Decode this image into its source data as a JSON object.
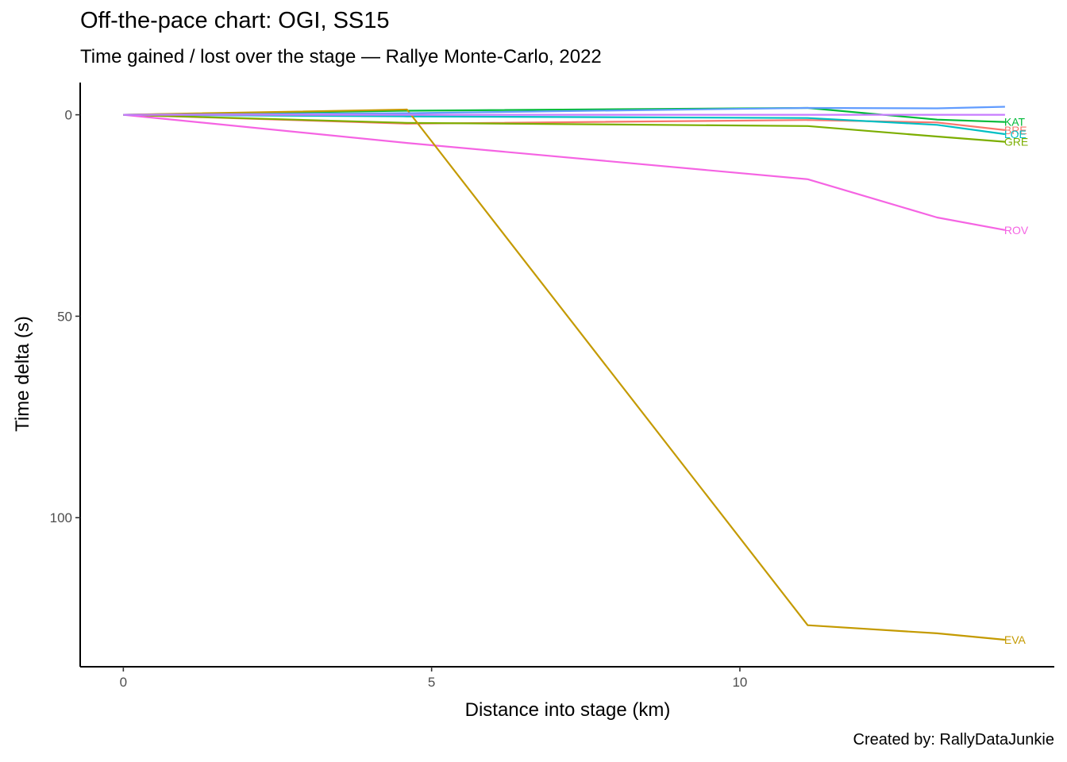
{
  "title": "Off-the-pace chart: OGI, SS15",
  "subtitle": "Time gained / lost over the stage — Rallye Monte-Carlo, 2022",
  "caption": "Created by: RallyDataJunkie",
  "chart_data": {
    "type": "line",
    "xlabel": "Distance into stage (km)",
    "ylabel": "Time delta (s)",
    "xlim": [
      -0.7,
      15.1
    ],
    "ylim": [
      -8,
      137
    ],
    "y_reversed": true,
    "x_ticks": [
      0,
      5,
      10
    ],
    "y_ticks": [
      0,
      50,
      100
    ],
    "grid": false,
    "legend": "none (direct end labels)",
    "series": [
      {
        "name": "KAT",
        "color": "#00BA38",
        "x": [
          0,
          4.6,
          11.1,
          13.2,
          14.3
        ],
        "y": [
          0,
          -1.0,
          -1.7,
          1.2,
          1.8
        ]
      },
      {
        "name": "BRE",
        "color": "#F8766D",
        "x": [
          0,
          4.6,
          11.1,
          13.2,
          14.3
        ],
        "y": [
          0,
          2.2,
          1.3,
          1.9,
          3.8
        ]
      },
      {
        "name": "LOE",
        "color": "#00BFC4",
        "x": [
          0,
          4.6,
          11.1,
          13.2,
          14.3
        ],
        "y": [
          0,
          0.4,
          0.8,
          2.5,
          4.8
        ]
      },
      {
        "name": "GRE",
        "color": "#7CAE00",
        "x": [
          0,
          4.6,
          11.1,
          13.2,
          14.3
        ],
        "y": [
          0,
          2.0,
          2.8,
          5.4,
          6.7
        ]
      },
      {
        "name": "ROV",
        "color": "#F564E3",
        "x": [
          0,
          4.6,
          11.1,
          13.2,
          14.3
        ],
        "y": [
          0,
          7.0,
          16.0,
          25.5,
          28.6
        ]
      },
      {
        "name": "EVA",
        "color": "#C49A00",
        "x": [
          0,
          4.6,
          11.1,
          13.2,
          14.3
        ],
        "y": [
          0,
          -1.3,
          126.7,
          128.7,
          130.3
        ]
      },
      {
        "name": "",
        "color": "#619CFF",
        "x": [
          0,
          4.6,
          11.1,
          13.2,
          14.3
        ],
        "y": [
          0,
          -0.4,
          -1.7,
          -1.6,
          -2.0
        ]
      },
      {
        "name": "",
        "color": "#C77CFF",
        "x": [
          0,
          4.6,
          11.1,
          13.2,
          14.3
        ],
        "y": [
          0,
          0,
          0,
          0,
          0
        ]
      }
    ]
  }
}
